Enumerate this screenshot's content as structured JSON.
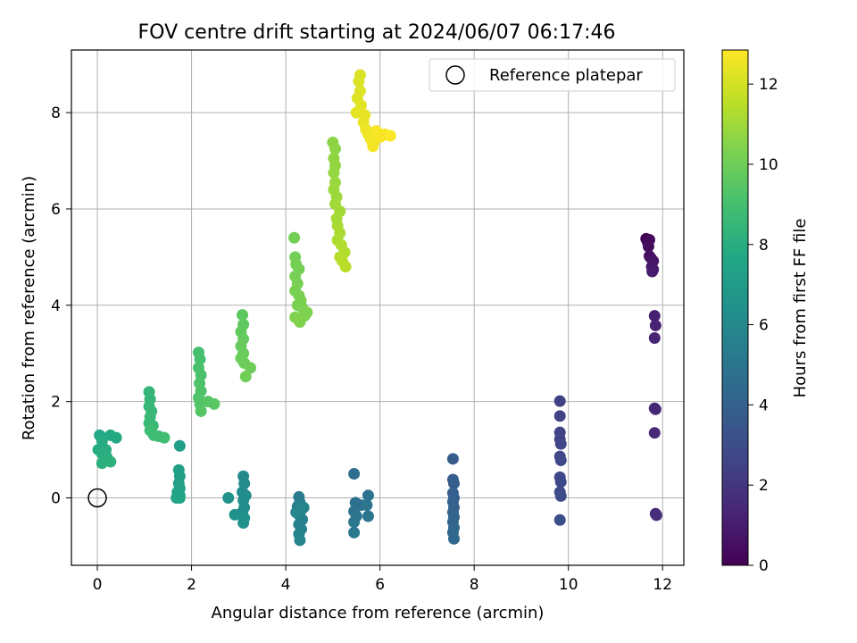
{
  "chart_data": {
    "type": "scatter",
    "title": "FOV centre drift starting at 2024/06/07 06:17:46",
    "xlabel": "Angular distance from reference (arcmin)",
    "ylabel": "Rotation from reference (arcmin)",
    "xlim": [
      -0.55,
      12.45
    ],
    "ylim": [
      -1.4,
      9.3
    ],
    "xticks": [
      0,
      2,
      4,
      6,
      8,
      10,
      12
    ],
    "yticks": [
      0,
      2,
      4,
      6,
      8
    ],
    "grid": true,
    "legend": {
      "position": "top-right",
      "label": "Reference platepar"
    },
    "reference_point": {
      "x": 0,
      "y": 0
    },
    "colorbar": {
      "label": "Hours from first FF file",
      "range": [
        0,
        12.85
      ],
      "ticks": [
        0,
        2,
        4,
        6,
        8,
        10,
        12
      ],
      "colormap": "viridis"
    },
    "points": [
      {
        "x": 11.65,
        "y": 5.38,
        "h": 0.1
      },
      {
        "x": 11.68,
        "y": 5.32,
        "h": 0.2
      },
      {
        "x": 11.72,
        "y": 5.36,
        "h": 0.3
      },
      {
        "x": 11.7,
        "y": 5.22,
        "h": 0.4
      },
      {
        "x": 11.72,
        "y": 5.02,
        "h": 0.5
      },
      {
        "x": 11.75,
        "y": 4.98,
        "h": 0.6
      },
      {
        "x": 11.8,
        "y": 4.92,
        "h": 0.7
      },
      {
        "x": 11.77,
        "y": 4.8,
        "h": 0.8
      },
      {
        "x": 11.8,
        "y": 4.74,
        "h": 0.9
      },
      {
        "x": 11.78,
        "y": 4.7,
        "h": 1.0
      },
      {
        "x": 11.83,
        "y": 3.78,
        "h": 1.1
      },
      {
        "x": 11.85,
        "y": 3.58,
        "h": 1.2
      },
      {
        "x": 11.83,
        "y": 3.32,
        "h": 1.3
      },
      {
        "x": 11.83,
        "y": 1.86,
        "h": 1.4
      },
      {
        "x": 11.85,
        "y": 1.84,
        "h": 1.45
      },
      {
        "x": 11.83,
        "y": 1.35,
        "h": 1.5
      },
      {
        "x": 11.85,
        "y": -0.33,
        "h": 1.6
      },
      {
        "x": 11.87,
        "y": -0.36,
        "h": 1.7
      },
      {
        "x": 9.82,
        "y": 2.01,
        "h": 2.4
      },
      {
        "x": 9.82,
        "y": 1.7,
        "h": 2.5
      },
      {
        "x": 9.82,
        "y": 1.36,
        "h": 2.55
      },
      {
        "x": 9.82,
        "y": 1.22,
        "h": 2.6
      },
      {
        "x": 9.84,
        "y": 1.12,
        "h": 2.65
      },
      {
        "x": 9.82,
        "y": 0.86,
        "h": 2.7
      },
      {
        "x": 9.84,
        "y": 0.78,
        "h": 2.75
      },
      {
        "x": 9.82,
        "y": 0.43,
        "h": 2.8
      },
      {
        "x": 9.84,
        "y": 0.33,
        "h": 2.85
      },
      {
        "x": 9.82,
        "y": 0.12,
        "h": 2.9
      },
      {
        "x": 9.84,
        "y": 0.04,
        "h": 2.95
      },
      {
        "x": 9.82,
        "y": -0.46,
        "h": 3.0
      },
      {
        "x": 7.55,
        "y": 0.81,
        "h": 3.7
      },
      {
        "x": 7.55,
        "y": 0.38,
        "h": 3.75
      },
      {
        "x": 7.57,
        "y": 0.3,
        "h": 3.8
      },
      {
        "x": 7.55,
        "y": 0.1,
        "h": 3.85
      },
      {
        "x": 7.57,
        "y": 0.0,
        "h": 3.9
      },
      {
        "x": 7.55,
        "y": -0.08,
        "h": 3.95
      },
      {
        "x": 7.57,
        "y": -0.2,
        "h": 4.0
      },
      {
        "x": 7.55,
        "y": -0.3,
        "h": 4.05
      },
      {
        "x": 7.57,
        "y": -0.4,
        "h": 4.1
      },
      {
        "x": 7.55,
        "y": -0.5,
        "h": 4.15
      },
      {
        "x": 7.57,
        "y": -0.62,
        "h": 4.2
      },
      {
        "x": 7.55,
        "y": -0.72,
        "h": 4.25
      },
      {
        "x": 7.57,
        "y": -0.85,
        "h": 4.3
      },
      {
        "x": 5.45,
        "y": 0.5,
        "h": 4.7
      },
      {
        "x": 5.48,
        "y": -0.1,
        "h": 4.75
      },
      {
        "x": 5.6,
        "y": -0.15,
        "h": 4.8
      },
      {
        "x": 5.45,
        "y": -0.28,
        "h": 4.85
      },
      {
        "x": 5.5,
        "y": -0.38,
        "h": 4.9
      },
      {
        "x": 5.75,
        "y": 0.05,
        "h": 4.95
      },
      {
        "x": 5.72,
        "y": -0.15,
        "h": 5.0
      },
      {
        "x": 5.75,
        "y": -0.38,
        "h": 5.05
      },
      {
        "x": 5.45,
        "y": -0.5,
        "h": 5.1
      },
      {
        "x": 5.45,
        "y": -0.72,
        "h": 5.15
      },
      {
        "x": 4.28,
        "y": 0.02,
        "h": 5.3
      },
      {
        "x": 4.3,
        "y": -0.1,
        "h": 5.35
      },
      {
        "x": 4.25,
        "y": -0.18,
        "h": 5.4
      },
      {
        "x": 4.33,
        "y": -0.25,
        "h": 5.45
      },
      {
        "x": 4.28,
        "y": -0.35,
        "h": 5.5
      },
      {
        "x": 4.35,
        "y": -0.45,
        "h": 5.55
      },
      {
        "x": 4.28,
        "y": -0.55,
        "h": 5.6
      },
      {
        "x": 4.33,
        "y": -0.65,
        "h": 5.65
      },
      {
        "x": 4.28,
        "y": -0.75,
        "h": 5.7
      },
      {
        "x": 4.3,
        "y": -0.88,
        "h": 5.75
      },
      {
        "x": 4.38,
        "y": -0.2,
        "h": 5.8
      },
      {
        "x": 4.22,
        "y": -0.3,
        "h": 5.85
      },
      {
        "x": 3.1,
        "y": 0.45,
        "h": 6.0
      },
      {
        "x": 3.12,
        "y": 0.3,
        "h": 6.05
      },
      {
        "x": 3.08,
        "y": 0.12,
        "h": 6.1
      },
      {
        "x": 3.15,
        "y": 0.05,
        "h": 6.15
      },
      {
        "x": 3.1,
        "y": -0.05,
        "h": 6.2
      },
      {
        "x": 3.12,
        "y": -0.2,
        "h": 6.25
      },
      {
        "x": 3.08,
        "y": -0.3,
        "h": 6.3
      },
      {
        "x": 3.12,
        "y": -0.42,
        "h": 6.35
      },
      {
        "x": 3.1,
        "y": -0.52,
        "h": 6.4
      },
      {
        "x": 2.92,
        "y": -0.35,
        "h": 6.45
      },
      {
        "x": 2.78,
        "y": 0.0,
        "h": 6.5
      },
      {
        "x": 1.75,
        "y": 1.08,
        "h": 7.1
      },
      {
        "x": 1.73,
        "y": 0.58,
        "h": 7.15
      },
      {
        "x": 1.75,
        "y": 0.45,
        "h": 7.2
      },
      {
        "x": 1.73,
        "y": 0.3,
        "h": 7.25
      },
      {
        "x": 1.75,
        "y": 0.2,
        "h": 7.3
      },
      {
        "x": 1.7,
        "y": 0.12,
        "h": 7.35
      },
      {
        "x": 1.75,
        "y": 0.05,
        "h": 7.4
      },
      {
        "x": 1.68,
        "y": 0.0,
        "h": 7.45
      },
      {
        "x": 1.75,
        "y": 0.0,
        "h": 7.5
      },
      {
        "x": 0.05,
        "y": 1.3,
        "h": 7.7
      },
      {
        "x": 0.28,
        "y": 1.3,
        "h": 7.75
      },
      {
        "x": 0.4,
        "y": 1.25,
        "h": 7.8
      },
      {
        "x": 0.1,
        "y": 1.18,
        "h": 7.85
      },
      {
        "x": 0.02,
        "y": 1.0,
        "h": 7.9
      },
      {
        "x": 0.18,
        "y": 1.0,
        "h": 7.95
      },
      {
        "x": 0.1,
        "y": 0.92,
        "h": 8.0
      },
      {
        "x": 0.2,
        "y": 0.85,
        "h": 8.05
      },
      {
        "x": 0.1,
        "y": 0.72,
        "h": 8.1
      },
      {
        "x": 0.28,
        "y": 0.75,
        "h": 8.15
      },
      {
        "x": 1.1,
        "y": 2.2,
        "h": 8.4
      },
      {
        "x": 1.12,
        "y": 2.05,
        "h": 8.45
      },
      {
        "x": 1.1,
        "y": 1.9,
        "h": 8.5
      },
      {
        "x": 1.15,
        "y": 1.8,
        "h": 8.55
      },
      {
        "x": 1.12,
        "y": 1.68,
        "h": 8.6
      },
      {
        "x": 1.1,
        "y": 1.55,
        "h": 8.65
      },
      {
        "x": 1.18,
        "y": 1.5,
        "h": 8.7
      },
      {
        "x": 1.12,
        "y": 1.4,
        "h": 8.75
      },
      {
        "x": 1.2,
        "y": 1.3,
        "h": 8.8
      },
      {
        "x": 1.3,
        "y": 1.28,
        "h": 8.85
      },
      {
        "x": 1.42,
        "y": 1.25,
        "h": 8.9
      },
      {
        "x": 2.15,
        "y": 3.02,
        "h": 9.0
      },
      {
        "x": 2.18,
        "y": 2.88,
        "h": 9.05
      },
      {
        "x": 2.15,
        "y": 2.7,
        "h": 9.1
      },
      {
        "x": 2.2,
        "y": 2.55,
        "h": 9.15
      },
      {
        "x": 2.17,
        "y": 2.38,
        "h": 9.2
      },
      {
        "x": 2.2,
        "y": 2.22,
        "h": 9.25
      },
      {
        "x": 2.15,
        "y": 2.08,
        "h": 9.3
      },
      {
        "x": 2.18,
        "y": 1.95,
        "h": 9.35
      },
      {
        "x": 2.2,
        "y": 1.8,
        "h": 9.4
      },
      {
        "x": 2.35,
        "y": 2.0,
        "h": 9.45
      },
      {
        "x": 2.48,
        "y": 1.95,
        "h": 9.5
      },
      {
        "x": 3.08,
        "y": 3.8,
        "h": 9.6
      },
      {
        "x": 3.1,
        "y": 3.6,
        "h": 9.65
      },
      {
        "x": 3.05,
        "y": 3.45,
        "h": 9.7
      },
      {
        "x": 3.1,
        "y": 3.3,
        "h": 9.75
      },
      {
        "x": 3.05,
        "y": 3.15,
        "h": 9.8
      },
      {
        "x": 3.1,
        "y": 3.0,
        "h": 9.85
      },
      {
        "x": 3.05,
        "y": 2.9,
        "h": 9.9
      },
      {
        "x": 3.12,
        "y": 2.8,
        "h": 9.95
      },
      {
        "x": 3.25,
        "y": 2.7,
        "h": 10.0
      },
      {
        "x": 3.15,
        "y": 2.52,
        "h": 10.05
      },
      {
        "x": 4.18,
        "y": 5.4,
        "h": 10.1
      },
      {
        "x": 4.2,
        "y": 5.0,
        "h": 10.12
      },
      {
        "x": 4.22,
        "y": 4.85,
        "h": 10.14
      },
      {
        "x": 4.28,
        "y": 4.75,
        "h": 10.16
      },
      {
        "x": 4.2,
        "y": 4.6,
        "h": 10.18
      },
      {
        "x": 4.25,
        "y": 4.45,
        "h": 10.2
      },
      {
        "x": 4.2,
        "y": 4.3,
        "h": 10.22
      },
      {
        "x": 4.28,
        "y": 4.2,
        "h": 10.24
      },
      {
        "x": 4.32,
        "y": 4.1,
        "h": 10.26
      },
      {
        "x": 4.25,
        "y": 4.0,
        "h": 10.28
      },
      {
        "x": 4.35,
        "y": 3.95,
        "h": 10.3
      },
      {
        "x": 4.45,
        "y": 3.85,
        "h": 10.32
      },
      {
        "x": 4.4,
        "y": 3.78,
        "h": 10.34
      },
      {
        "x": 4.2,
        "y": 3.75,
        "h": 10.36
      },
      {
        "x": 4.3,
        "y": 3.65,
        "h": 10.38
      },
      {
        "x": 5.0,
        "y": 7.38,
        "h": 10.6
      },
      {
        "x": 5.05,
        "y": 7.25,
        "h": 10.65
      },
      {
        "x": 5.02,
        "y": 7.05,
        "h": 10.7
      },
      {
        "x": 5.05,
        "y": 6.9,
        "h": 10.75
      },
      {
        "x": 5.02,
        "y": 6.75,
        "h": 10.8
      },
      {
        "x": 5.05,
        "y": 6.55,
        "h": 10.85
      },
      {
        "x": 5.02,
        "y": 6.4,
        "h": 10.9
      },
      {
        "x": 5.08,
        "y": 6.25,
        "h": 10.95
      },
      {
        "x": 5.05,
        "y": 6.1,
        "h": 11.0
      },
      {
        "x": 5.15,
        "y": 5.95,
        "h": 11.05
      },
      {
        "x": 5.08,
        "y": 5.8,
        "h": 11.1
      },
      {
        "x": 5.1,
        "y": 5.65,
        "h": 11.15
      },
      {
        "x": 5.15,
        "y": 5.5,
        "h": 11.2
      },
      {
        "x": 5.1,
        "y": 5.35,
        "h": 11.25
      },
      {
        "x": 5.18,
        "y": 5.25,
        "h": 11.3
      },
      {
        "x": 5.25,
        "y": 5.1,
        "h": 11.35
      },
      {
        "x": 5.15,
        "y": 5.0,
        "h": 11.4
      },
      {
        "x": 5.2,
        "y": 4.92,
        "h": 11.45
      },
      {
        "x": 5.27,
        "y": 4.8,
        "h": 11.5
      },
      {
        "x": 5.58,
        "y": 8.78,
        "h": 12.1
      },
      {
        "x": 5.55,
        "y": 8.65,
        "h": 12.15
      },
      {
        "x": 5.58,
        "y": 8.45,
        "h": 12.2
      },
      {
        "x": 5.52,
        "y": 8.3,
        "h": 12.25
      },
      {
        "x": 5.6,
        "y": 8.15,
        "h": 12.3
      },
      {
        "x": 5.5,
        "y": 8.0,
        "h": 12.35
      },
      {
        "x": 5.68,
        "y": 7.95,
        "h": 12.4
      },
      {
        "x": 5.65,
        "y": 7.8,
        "h": 12.45
      },
      {
        "x": 5.7,
        "y": 7.65,
        "h": 12.5
      },
      {
        "x": 5.75,
        "y": 7.55,
        "h": 12.55
      },
      {
        "x": 5.8,
        "y": 7.45,
        "h": 12.6
      },
      {
        "x": 5.88,
        "y": 7.4,
        "h": 12.65
      },
      {
        "x": 5.85,
        "y": 7.3,
        "h": 12.68
      },
      {
        "x": 5.92,
        "y": 7.62,
        "h": 12.7
      },
      {
        "x": 6.02,
        "y": 7.5,
        "h": 12.72
      },
      {
        "x": 6.1,
        "y": 7.55,
        "h": 12.75
      },
      {
        "x": 6.22,
        "y": 7.52,
        "h": 12.78
      }
    ]
  }
}
